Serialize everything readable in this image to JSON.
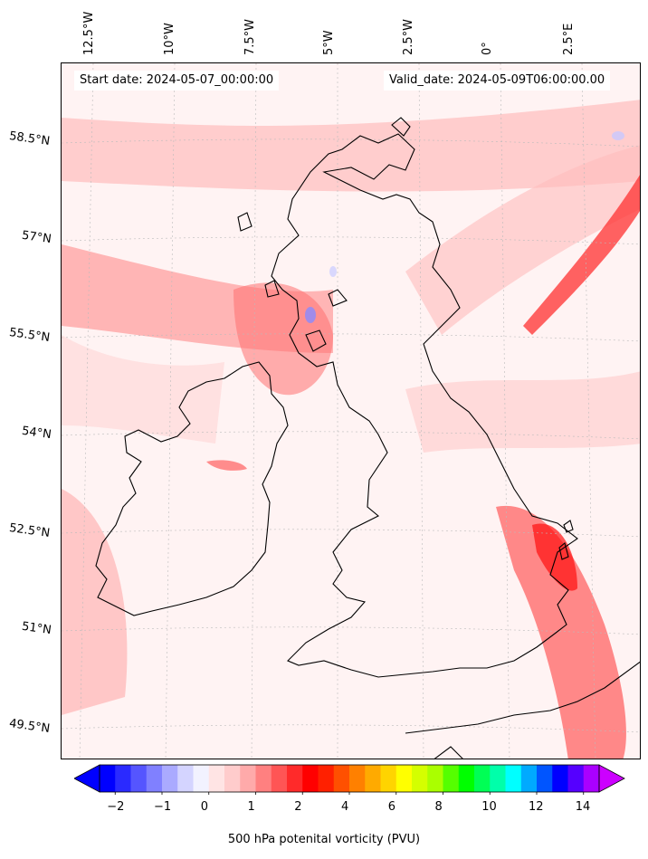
{
  "map": {
    "start_date": "Start date: 2024-05-07_00:00:00",
    "valid_date": "Valid_date: 2024-05-09T06:00:00.00",
    "lon_labels": [
      "12.5°W",
      "10°W",
      "7.5°W",
      "5°W",
      "2.5°W",
      "0°",
      "2.5°E"
    ],
    "lat_labels": [
      "58.5°N",
      "57°N",
      "55.5°N",
      "54°N",
      "52.5°N",
      "51°N",
      "49.5°N"
    ],
    "background_color": "#fff3f3",
    "coastline_color": "#000000"
  },
  "colorbar": {
    "label": "500 hPa potenital vorticity (PVU)",
    "ticks": [
      "−2",
      "−1",
      "0",
      "1",
      "2",
      "4",
      "6",
      "8",
      "10",
      "12",
      "14"
    ],
    "colors": [
      "#0000ff",
      "#2a2aff",
      "#5555ff",
      "#8080ff",
      "#aaaaff",
      "#d4d4ff",
      "#f2f2ff",
      "#ffe4e4",
      "#ffcccc",
      "#ffaaaa",
      "#ff8080",
      "#ff5555",
      "#ff2a2a",
      "#ff0000",
      "#ff2000",
      "#ff5000",
      "#ff8000",
      "#ffaa00",
      "#ffd400",
      "#ffff00",
      "#d4ff00",
      "#aaff00",
      "#55ff00",
      "#00ff00",
      "#00ff55",
      "#00ffaa",
      "#00ffff",
      "#00aaff",
      "#0055ff",
      "#0000ff",
      "#5500ff",
      "#aa00ff"
    ],
    "min_color": "#0000ff",
    "max_color": "#cc00ff"
  }
}
